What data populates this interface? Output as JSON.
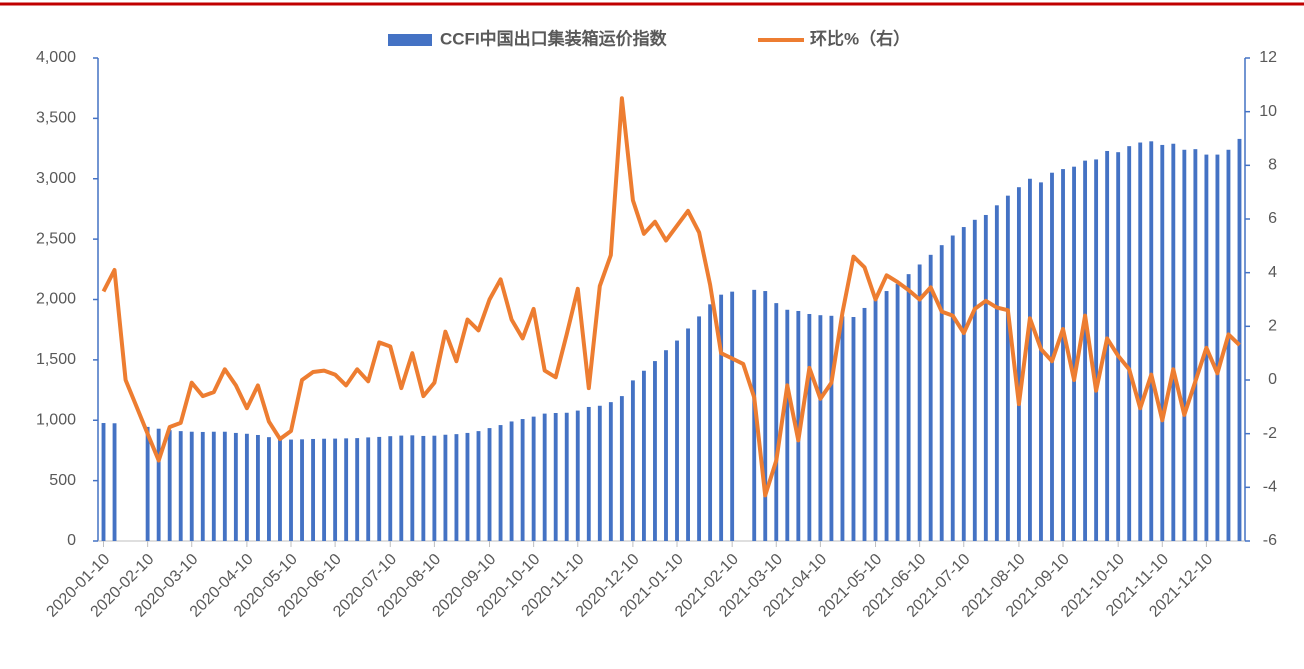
{
  "chart_data": {
    "type": "bar-line",
    "categories": [
      "2020-01-10",
      null,
      null,
      null,
      "2020-02-10",
      null,
      null,
      null,
      "2020-03-10",
      null,
      null,
      null,
      null,
      "2020-04-10",
      null,
      null,
      null,
      "2020-05-10",
      null,
      null,
      null,
      "2020-06-10",
      null,
      null,
      null,
      null,
      "2020-07-10",
      null,
      null,
      null,
      "2020-08-10",
      null,
      null,
      null,
      null,
      "2020-09-10",
      null,
      null,
      null,
      "2020-10-10",
      null,
      null,
      null,
      "2020-11-10",
      null,
      null,
      null,
      null,
      "2020-12-10",
      null,
      null,
      null,
      "2021-01-10",
      null,
      null,
      null,
      null,
      "2021-02-10",
      null,
      null,
      null,
      "2021-03-10",
      null,
      null,
      null,
      "2021-04-10",
      null,
      null,
      null,
      null,
      "2021-05-10",
      null,
      null,
      null,
      "2021-06-10",
      null,
      null,
      null,
      "2021-07-10",
      null,
      null,
      null,
      null,
      "2021-08-10",
      null,
      null,
      null,
      "2021-09-10",
      null,
      null,
      null,
      null,
      "2021-10-10",
      null,
      null,
      null,
      "2021-11-10",
      null,
      null,
      null,
      "2021-12-10",
      null,
      null,
      null
    ],
    "series": [
      {
        "name": "CCFI中国出口集装箱运价指数",
        "type": "bar",
        "color": "#4472c4",
        "values": [
          977,
          975,
          null,
          null,
          945,
          930,
          918,
          910,
          905,
          903,
          905,
          905,
          895,
          888,
          878,
          860,
          845,
          840,
          842,
          845,
          847,
          848,
          850,
          852,
          858,
          862,
          868,
          873,
          875,
          870,
          872,
          880,
          885,
          895,
          910,
          935,
          960,
          990,
          1010,
          1030,
          1055,
          1060,
          1062,
          1080,
          1110,
          1120,
          1150,
          1200,
          1330,
          1410,
          1490,
          1580,
          1660,
          1760,
          1860,
          1960,
          2040,
          2065,
          null,
          2080,
          2070,
          1970,
          1915,
          1905,
          1880,
          1870,
          1865,
          1860,
          1855,
          1930,
          2000,
          2070,
          2130,
          2210,
          2290,
          2370,
          2450,
          2530,
          2600,
          2660,
          2700,
          2780,
          2860,
          2930,
          3000,
          2970,
          3050,
          3080,
          3100,
          3150,
          3160,
          3230,
          3220,
          3270,
          3300,
          3310,
          3280,
          3290,
          3240,
          3245,
          3200,
          3200,
          3240,
          3330
        ]
      },
      {
        "name": "环比%（右）",
        "type": "line",
        "axis": "y2",
        "color": "#ed7d31",
        "values": [
          3.3,
          4.1,
          0.0,
          -1.0,
          -2.0,
          -3.0,
          -1.75,
          -1.6,
          -0.1,
          -0.6,
          -0.45,
          0.4,
          -0.2,
          -1.05,
          -0.2,
          -1.55,
          -2.2,
          -1.9,
          0.0,
          0.3,
          0.35,
          0.2,
          -0.2,
          0.4,
          -0.05,
          1.4,
          1.25,
          -0.3,
          1.0,
          -0.6,
          -0.1,
          1.8,
          0.7,
          2.25,
          1.85,
          3.0,
          3.75,
          2.25,
          1.55,
          2.65,
          0.35,
          0.1,
          1.7,
          3.4,
          -0.3,
          3.5,
          4.65,
          10.5,
          6.7,
          5.45,
          5.9,
          5.2,
          5.75,
          6.3,
          5.5,
          3.55,
          1.0,
          0.8,
          0.6,
          -0.65,
          -4.3,
          -3.0,
          -0.2,
          -2.25,
          0.45,
          -0.7,
          -0.1,
          2.5,
          4.6,
          4.2,
          3.0,
          3.9,
          3.65,
          3.35,
          3.0,
          3.45,
          2.55,
          2.4,
          1.75,
          2.65,
          2.95,
          2.7,
          2.6,
          -0.9,
          2.3,
          1.15,
          0.7,
          1.9,
          0.0,
          2.4,
          -0.4,
          1.55,
          0.9,
          0.4,
          -1.05,
          0.2,
          -1.5,
          0.4,
          -1.3,
          -0.05,
          1.2,
          0.25,
          1.7,
          1.3
        ]
      }
    ],
    "ylim": [
      0,
      4000
    ],
    "yticks": [
      0,
      500,
      {
        "value": 1000,
        "label": "1,000"
      },
      {
        "value": 1500,
        "label": "1,500"
      },
      {
        "value": 2000,
        "label": "2,000"
      },
      {
        "value": 2500,
        "label": "2,500"
      },
      {
        "value": 3000,
        "label": "3,000"
      },
      {
        "value": 3500,
        "label": "3,500"
      },
      {
        "value": 4000,
        "label": "4,000"
      }
    ],
    "y2lim": [
      -6,
      12
    ],
    "y2ticks": [
      -6,
      -4,
      -2,
      0,
      2,
      4,
      6,
      8,
      10,
      12
    ],
    "legend": "top"
  }
}
